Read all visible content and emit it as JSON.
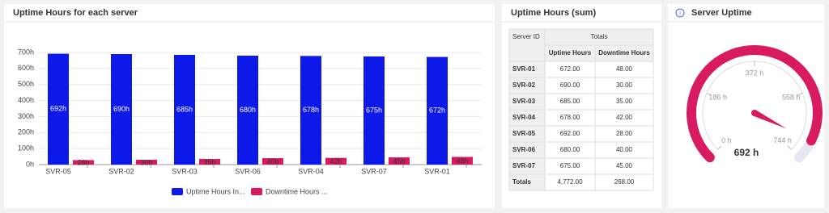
{
  "chart_data": [
    {
      "type": "bar",
      "title": "Uptime Hours for each server",
      "categories": [
        "SVR-05",
        "SVR-02",
        "SVR-03",
        "SVR-06",
        "SVR-04",
        "SVR-07",
        "SVR-01"
      ],
      "series": [
        {
          "name": "Uptime Hours In...",
          "color": "#0c19e8",
          "values": [
            692,
            690,
            685,
            680,
            678,
            675,
            672
          ],
          "value_labels": [
            "692h",
            "690h",
            "685h",
            "680h",
            "678h",
            "675h",
            "672h"
          ]
        },
        {
          "name": "Downtime Hours ...",
          "color": "#d81b60",
          "values": [
            28,
            30,
            35,
            40,
            42,
            45,
            48
          ],
          "value_labels": [
            "28h",
            "30h",
            "35h",
            "40h",
            "42h",
            "45h",
            "48h"
          ]
        }
      ],
      "ylim": [
        0,
        700
      ],
      "yticks": [
        {
          "value": 0,
          "label": "0h"
        },
        {
          "value": 100,
          "label": "100h"
        },
        {
          "value": 200,
          "label": "200h"
        },
        {
          "value": 300,
          "label": "300h"
        },
        {
          "value": 400,
          "label": "400h"
        },
        {
          "value": 500,
          "label": "500h"
        },
        {
          "value": 600,
          "label": "600h"
        },
        {
          "value": 700,
          "label": "700h"
        }
      ],
      "grid": true
    },
    {
      "type": "gauge",
      "title": "Server Uptime",
      "value": 692,
      "value_label": "692 h",
      "ylim": [
        0,
        744
      ],
      "color": "#d81b60",
      "yticks": [
        {
          "value": 0,
          "label": "0 h"
        },
        {
          "value": 186,
          "label": "186 h"
        },
        {
          "value": 372,
          "label": "372 h"
        },
        {
          "value": 558,
          "label": "558 h"
        },
        {
          "value": 744,
          "label": "744 h"
        }
      ]
    }
  ],
  "table": {
    "title": "Uptime Hours (sum)",
    "header": [
      "Server ID",
      "Totals"
    ],
    "subheader": [
      "Uptime Hours",
      "Downtime Hours"
    ],
    "rows": [
      [
        "SVR-01",
        "672.00",
        "48.00"
      ],
      [
        "SVR-02",
        "690.00",
        "30.00"
      ],
      [
        "SVR-03",
        "685.00",
        "35.00"
      ],
      [
        "SVR-04",
        "678.00",
        "42.00"
      ],
      [
        "SVR-05",
        "692.00",
        "28.00"
      ],
      [
        "SVR-06",
        "680.00",
        "40.00"
      ],
      [
        "SVR-07",
        "675.00",
        "45.00"
      ],
      [
        "Totals",
        "4,772.00",
        "268.00"
      ]
    ]
  }
}
